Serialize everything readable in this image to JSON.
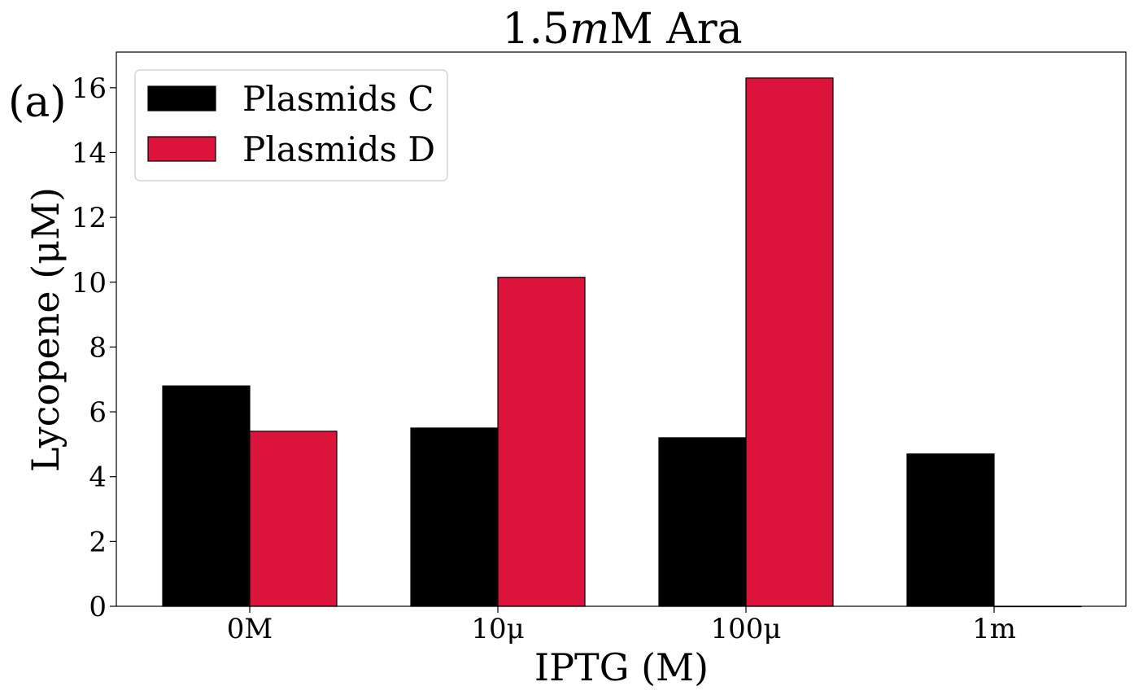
{
  "chart_data": {
    "type": "bar",
    "title": "1.5mM Ara",
    "title_parts": {
      "number": "1.5",
      "italic_prefix": "m",
      "rest": "M Ara"
    },
    "panel_label": "(a)",
    "xlabel": "IPTG (M)",
    "ylabel": "Lycopene (μM)",
    "categories": [
      "0M",
      "10μ",
      "100μ",
      "1m"
    ],
    "series": [
      {
        "name": "Plasmids C",
        "color": "#000000",
        "values": [
          6.8,
          5.5,
          5.2,
          4.7
        ]
      },
      {
        "name": "Plasmids D",
        "color": "#dc143c",
        "values": [
          5.4,
          10.15,
          16.3,
          0
        ]
      }
    ],
    "ylim": [
      0,
      17.1
    ],
    "yticks": [
      0,
      2,
      4,
      6,
      8,
      10,
      12,
      14,
      16
    ],
    "grid": false,
    "legend_position": "top-left"
  }
}
